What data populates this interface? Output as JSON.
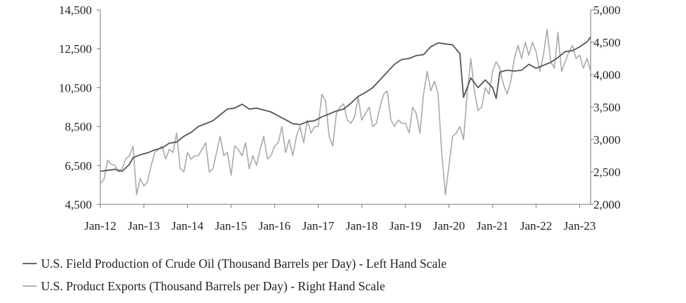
{
  "chart_data": {
    "type": "line",
    "x_tick_labels": [
      "Jan-12",
      "Jan-13",
      "Jan-14",
      "Jan-15",
      "Jan-16",
      "Jan-17",
      "Jan-18",
      "Jan-19",
      "Jan-20",
      "Jan-21",
      "Jan-22",
      "Jan-23"
    ],
    "x_tick_dates": [
      "2012-01",
      "2013-01",
      "2014-01",
      "2015-01",
      "2016-01",
      "2017-01",
      "2018-01",
      "2019-01",
      "2020-01",
      "2021-01",
      "2022-01",
      "2023-01"
    ],
    "x_range": [
      "2012-01",
      "2023-04"
    ],
    "left_axis": {
      "ylim": [
        4500,
        14500
      ],
      "tick_labels": [
        "4,500",
        "6,500",
        "8,500",
        "10,500",
        "12,500",
        "14,500"
      ],
      "tick_values": [
        4500,
        6500,
        8500,
        10500,
        12500,
        14500
      ]
    },
    "right_axis": {
      "ylim": [
        2000,
        5000
      ],
      "tick_labels": [
        "2,000",
        "2,500",
        "3,000",
        "3,500",
        "4,000",
        "4,500",
        "5,000"
      ],
      "tick_values": [
        2000,
        2500,
        3000,
        3500,
        4000,
        4500,
        5000
      ]
    },
    "grid": false,
    "legend_position": "bottom-left",
    "series": [
      {
        "name": "U.S. Field Production of Crude Oil (Thousand Barrels per Day) - Left Hand Scale",
        "axis": "left",
        "color": "#555555",
        "points": [
          [
            "2012-01",
            6200
          ],
          [
            "2012-03",
            6250
          ],
          [
            "2012-05",
            6300
          ],
          [
            "2012-07",
            6200
          ],
          [
            "2012-09",
            6550
          ],
          [
            "2012-10",
            6900
          ],
          [
            "2012-12",
            7050
          ],
          [
            "2013-02",
            7150
          ],
          [
            "2013-04",
            7300
          ],
          [
            "2013-06",
            7400
          ],
          [
            "2013-08",
            7650
          ],
          [
            "2013-10",
            7700
          ],
          [
            "2013-12",
            8000
          ],
          [
            "2014-02",
            8200
          ],
          [
            "2014-04",
            8500
          ],
          [
            "2014-06",
            8650
          ],
          [
            "2014-08",
            8800
          ],
          [
            "2014-10",
            9100
          ],
          [
            "2014-12",
            9400
          ],
          [
            "2015-02",
            9450
          ],
          [
            "2015-04",
            9650
          ],
          [
            "2015-06",
            9400
          ],
          [
            "2015-08",
            9450
          ],
          [
            "2015-10",
            9350
          ],
          [
            "2015-12",
            9250
          ],
          [
            "2016-02",
            9050
          ],
          [
            "2016-04",
            8850
          ],
          [
            "2016-06",
            8650
          ],
          [
            "2016-08",
            8600
          ],
          [
            "2016-10",
            8750
          ],
          [
            "2016-12",
            8800
          ],
          [
            "2017-02",
            9000
          ],
          [
            "2017-04",
            9150
          ],
          [
            "2017-06",
            9300
          ],
          [
            "2017-08",
            9400
          ],
          [
            "2017-10",
            9700
          ],
          [
            "2017-12",
            10050
          ],
          [
            "2018-02",
            10250
          ],
          [
            "2018-04",
            10500
          ],
          [
            "2018-06",
            10900
          ],
          [
            "2018-08",
            11300
          ],
          [
            "2018-10",
            11700
          ],
          [
            "2018-12",
            11950
          ],
          [
            "2019-02",
            12000
          ],
          [
            "2019-04",
            12150
          ],
          [
            "2019-06",
            12200
          ],
          [
            "2019-08",
            12600
          ],
          [
            "2019-10",
            12800
          ],
          [
            "2019-12",
            12750
          ],
          [
            "2020-02",
            12700
          ],
          [
            "2020-04",
            12250
          ],
          [
            "2020-05",
            10000
          ],
          [
            "2020-07",
            11000
          ],
          [
            "2020-09",
            10500
          ],
          [
            "2020-11",
            10900
          ],
          [
            "2021-01",
            10500
          ],
          [
            "2021-02",
            9950
          ],
          [
            "2021-03",
            11300
          ],
          [
            "2021-05",
            11400
          ],
          [
            "2021-07",
            11350
          ],
          [
            "2021-09",
            11400
          ],
          [
            "2021-11",
            11700
          ],
          [
            "2022-01",
            11500
          ],
          [
            "2022-03",
            11650
          ],
          [
            "2022-05",
            11800
          ],
          [
            "2022-07",
            12050
          ],
          [
            "2022-09",
            12350
          ],
          [
            "2022-11",
            12400
          ],
          [
            "2023-01",
            12600
          ],
          [
            "2023-03",
            12850
          ],
          [
            "2023-04",
            13100
          ]
        ]
      },
      {
        "name": "U.S. Product Exports (Thousand Barrels per Day) - Right Hand Scale",
        "axis": "right",
        "color": "#aaaaaa",
        "points": [
          [
            "2012-01",
            2320
          ],
          [
            "2012-02",
            2380
          ],
          [
            "2012-03",
            2680
          ],
          [
            "2012-04",
            2620
          ],
          [
            "2012-05",
            2600
          ],
          [
            "2012-06",
            2500
          ],
          [
            "2012-07",
            2550
          ],
          [
            "2012-08",
            2700
          ],
          [
            "2012-09",
            2750
          ],
          [
            "2012-10",
            2900
          ],
          [
            "2012-11",
            2150
          ],
          [
            "2012-12",
            2400
          ],
          [
            "2013-01",
            2280
          ],
          [
            "2013-02",
            2350
          ],
          [
            "2013-03",
            2600
          ],
          [
            "2013-04",
            2800
          ],
          [
            "2013-05",
            2850
          ],
          [
            "2013-06",
            2900
          ],
          [
            "2013-07",
            2700
          ],
          [
            "2013-08",
            2850
          ],
          [
            "2013-09",
            2800
          ],
          [
            "2013-10",
            3100
          ],
          [
            "2013-11",
            2550
          ],
          [
            "2013-12",
            2500
          ],
          [
            "2014-01",
            2800
          ],
          [
            "2014-02",
            2700
          ],
          [
            "2014-03",
            2750
          ],
          [
            "2014-04",
            2750
          ],
          [
            "2014-05",
            2850
          ],
          [
            "2014-06",
            2950
          ],
          [
            "2014-07",
            2500
          ],
          [
            "2014-08",
            2550
          ],
          [
            "2014-09",
            2800
          ],
          [
            "2014-10",
            3050
          ],
          [
            "2014-11",
            2750
          ],
          [
            "2014-12",
            2800
          ],
          [
            "2015-01",
            2450
          ],
          [
            "2015-02",
            2900
          ],
          [
            "2015-03",
            2850
          ],
          [
            "2015-04",
            2750
          ],
          [
            "2015-05",
            2950
          ],
          [
            "2015-06",
            2550
          ],
          [
            "2015-07",
            2750
          ],
          [
            "2015-08",
            2600
          ],
          [
            "2015-09",
            2850
          ],
          [
            "2015-10",
            3050
          ],
          [
            "2015-11",
            2700
          ],
          [
            "2015-12",
            2750
          ],
          [
            "2016-01",
            2900
          ],
          [
            "2016-02",
            2950
          ],
          [
            "2016-03",
            3200
          ],
          [
            "2016-04",
            2800
          ],
          [
            "2016-05",
            3000
          ],
          [
            "2016-06",
            2750
          ],
          [
            "2016-07",
            3050
          ],
          [
            "2016-08",
            3200
          ],
          [
            "2016-09",
            2950
          ],
          [
            "2016-10",
            3300
          ],
          [
            "2016-11",
            3100
          ],
          [
            "2016-12",
            3200
          ],
          [
            "2017-01",
            3200
          ],
          [
            "2017-02",
            3700
          ],
          [
            "2017-03",
            3600
          ],
          [
            "2017-04",
            3050
          ],
          [
            "2017-05",
            2900
          ],
          [
            "2017-06",
            3400
          ],
          [
            "2017-07",
            3500
          ],
          [
            "2017-08",
            3550
          ],
          [
            "2017-09",
            3300
          ],
          [
            "2017-10",
            3250
          ],
          [
            "2017-11",
            3350
          ],
          [
            "2017-12",
            3650
          ],
          [
            "2018-01",
            3300
          ],
          [
            "2018-02",
            3400
          ],
          [
            "2018-03",
            3500
          ],
          [
            "2018-04",
            3200
          ],
          [
            "2018-05",
            3250
          ],
          [
            "2018-06",
            3500
          ],
          [
            "2018-07",
            3700
          ],
          [
            "2018-08",
            3750
          ],
          [
            "2018-09",
            3300
          ],
          [
            "2018-10",
            3200
          ],
          [
            "2018-11",
            3300
          ],
          [
            "2018-12",
            3250
          ],
          [
            "2019-01",
            3250
          ],
          [
            "2019-02",
            3100
          ],
          [
            "2019-03",
            3500
          ],
          [
            "2019-04",
            3400
          ],
          [
            "2019-05",
            3100
          ],
          [
            "2019-06",
            3700
          ],
          [
            "2019-07",
            4050
          ],
          [
            "2019-08",
            3750
          ],
          [
            "2019-09",
            3900
          ],
          [
            "2019-10",
            3700
          ],
          [
            "2019-11",
            2800
          ],
          [
            "2019-12",
            2150
          ],
          [
            "2020-01",
            2600
          ],
          [
            "2020-02",
            3050
          ],
          [
            "2020-03",
            3100
          ],
          [
            "2020-04",
            3200
          ],
          [
            "2020-05",
            3000
          ],
          [
            "2020-06",
            3700
          ],
          [
            "2020-07",
            4250
          ],
          [
            "2020-08",
            3750
          ],
          [
            "2020-09",
            3450
          ],
          [
            "2020-10",
            3500
          ],
          [
            "2020-11",
            3800
          ],
          [
            "2020-12",
            3700
          ],
          [
            "2021-01",
            4050
          ],
          [
            "2021-02",
            4200
          ],
          [
            "2021-03",
            4100
          ],
          [
            "2021-04",
            3850
          ],
          [
            "2021-05",
            3700
          ],
          [
            "2021-06",
            3900
          ],
          [
            "2021-07",
            4250
          ],
          [
            "2021-08",
            4450
          ],
          [
            "2021-09",
            4250
          ],
          [
            "2021-10",
            4500
          ],
          [
            "2021-11",
            4300
          ],
          [
            "2021-12",
            4500
          ],
          [
            "2022-01",
            4350
          ],
          [
            "2022-02",
            4050
          ],
          [
            "2022-03",
            4300
          ],
          [
            "2022-04",
            4700
          ],
          [
            "2022-05",
            4200
          ],
          [
            "2022-06",
            4100
          ],
          [
            "2022-07",
            4650
          ],
          [
            "2022-08",
            4050
          ],
          [
            "2022-09",
            4200
          ],
          [
            "2022-10",
            4350
          ],
          [
            "2022-11",
            4450
          ],
          [
            "2022-12",
            4250
          ],
          [
            "2023-01",
            4300
          ],
          [
            "2023-02",
            4100
          ],
          [
            "2023-03",
            4250
          ],
          [
            "2023-04",
            4050
          ]
        ]
      }
    ]
  }
}
